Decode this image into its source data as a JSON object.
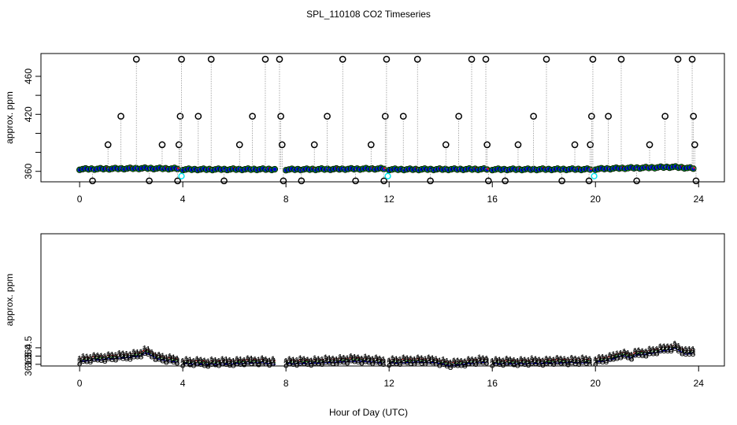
{
  "figure": {
    "title": "SPL_110108  CO2 Timeseries",
    "xlabel": "Hour of Day (UTC)"
  },
  "colors": {
    "raw_points": "#000000",
    "flag_points": "#00e5ee",
    "series_1": "#dd0000",
    "series_2": "#00aa00",
    "series_3": "#0000cc",
    "trend_line": "#888888"
  },
  "chart_data": [
    {
      "type": "scatter",
      "name": "top-panel",
      "ylabel": "approx. ppm",
      "xlim": [
        -1.5,
        25
      ],
      "ylim": [
        349,
        484
      ],
      "xticks": [
        0,
        4,
        8,
        12,
        16,
        20,
        24
      ],
      "yticks": [
        360,
        380,
        400,
        420,
        440,
        460
      ],
      "ytick_labels": [
        "360",
        "",
        "",
        "420",
        "",
        "460"
      ],
      "baseline_segments": [
        {
          "x": [
            0.0,
            2.5,
            3.0,
            3.8
          ],
          "y": [
            362.3,
            363.2,
            363.0,
            362.8
          ]
        },
        {
          "x": [
            4.0,
            7.6
          ],
          "y": [
            362.0,
            362.2
          ]
        },
        {
          "x": [
            8.0,
            11.8
          ],
          "y": [
            361.9,
            362.8
          ]
        },
        {
          "x": [
            12.0,
            15.8
          ],
          "y": [
            362.0,
            362.3
          ]
        },
        {
          "x": [
            16.0,
            19.8
          ],
          "y": [
            362.0,
            362.2
          ]
        },
        {
          "x": [
            20.0,
            21.0,
            22.0,
            23.0,
            23.8
          ],
          "y": [
            362.4,
            363.3,
            363.8,
            364.6,
            363.2
          ]
        }
      ],
      "spikes": [
        {
          "x": 0.5,
          "y": 350
        },
        {
          "x": 1.1,
          "y": 388
        },
        {
          "x": 1.6,
          "y": 418
        },
        {
          "x": 2.2,
          "y": 478
        },
        {
          "x": 2.7,
          "y": 350
        },
        {
          "x": 3.2,
          "y": 388
        },
        {
          "x": 3.8,
          "y": 350
        },
        {
          "x": 3.85,
          "y": 388
        },
        {
          "x": 3.9,
          "y": 418
        },
        {
          "x": 3.95,
          "y": 478
        },
        {
          "x": 4.6,
          "y": 418
        },
        {
          "x": 5.1,
          "y": 478
        },
        {
          "x": 5.6,
          "y": 350
        },
        {
          "x": 6.2,
          "y": 388
        },
        {
          "x": 6.7,
          "y": 418
        },
        {
          "x": 7.2,
          "y": 478
        },
        {
          "x": 7.75,
          "y": 478
        },
        {
          "x": 7.8,
          "y": 418
        },
        {
          "x": 7.85,
          "y": 388
        },
        {
          "x": 7.9,
          "y": 350
        },
        {
          "x": 8.6,
          "y": 350
        },
        {
          "x": 9.1,
          "y": 388
        },
        {
          "x": 9.6,
          "y": 418
        },
        {
          "x": 10.2,
          "y": 478
        },
        {
          "x": 10.7,
          "y": 350
        },
        {
          "x": 11.3,
          "y": 388
        },
        {
          "x": 11.8,
          "y": 350
        },
        {
          "x": 11.85,
          "y": 418
        },
        {
          "x": 11.9,
          "y": 478
        },
        {
          "x": 12.55,
          "y": 418
        },
        {
          "x": 13.1,
          "y": 478
        },
        {
          "x": 13.6,
          "y": 350
        },
        {
          "x": 14.2,
          "y": 388
        },
        {
          "x": 14.7,
          "y": 418
        },
        {
          "x": 15.2,
          "y": 478
        },
        {
          "x": 15.75,
          "y": 478
        },
        {
          "x": 15.8,
          "y": 388
        },
        {
          "x": 15.85,
          "y": 350
        },
        {
          "x": 16.5,
          "y": 350
        },
        {
          "x": 17.0,
          "y": 388
        },
        {
          "x": 17.6,
          "y": 418
        },
        {
          "x": 18.1,
          "y": 478
        },
        {
          "x": 18.7,
          "y": 350
        },
        {
          "x": 19.2,
          "y": 388
        },
        {
          "x": 19.75,
          "y": 350
        },
        {
          "x": 19.8,
          "y": 388
        },
        {
          "x": 19.85,
          "y": 418
        },
        {
          "x": 19.9,
          "y": 478
        },
        {
          "x": 20.5,
          "y": 418
        },
        {
          "x": 21.0,
          "y": 478
        },
        {
          "x": 21.6,
          "y": 350
        },
        {
          "x": 22.1,
          "y": 388
        },
        {
          "x": 22.7,
          "y": 418
        },
        {
          "x": 23.2,
          "y": 478
        },
        {
          "x": 23.75,
          "y": 478
        },
        {
          "x": 23.8,
          "y": 418
        },
        {
          "x": 23.85,
          "y": 388
        },
        {
          "x": 23.9,
          "y": 350
        }
      ],
      "flag_points": [
        {
          "x": 3.95,
          "y": 355
        },
        {
          "x": 11.95,
          "y": 355
        },
        {
          "x": 19.95,
          "y": 355
        }
      ]
    },
    {
      "type": "line",
      "name": "bottom-panel",
      "ylabel": "approx. ppm",
      "xlim": [
        -1.5,
        25
      ],
      "ylim": [
        361.2,
        385.2
      ],
      "xticks": [
        0,
        4,
        8,
        12,
        16,
        20,
        24
      ],
      "yticks": [
        361.5,
        363.0,
        364.5
      ],
      "ytick_labels": [
        "361.5",
        "363.0",
        "364.5"
      ],
      "series": [
        {
          "name": "1",
          "marker": "1",
          "offset": 0.6
        },
        {
          "name": "2",
          "marker": "2",
          "offset": 0.3
        },
        {
          "name": "3",
          "marker": "3",
          "offset": 0.0
        }
      ],
      "segments": [
        {
          "x": [
            0.0,
            0.6,
            1.2,
            1.8,
            2.3,
            2.6,
            3.0,
            3.4,
            3.8
          ],
          "y": [
            362.0,
            362.3,
            362.5,
            362.7,
            363.0,
            363.6,
            362.5,
            362.1,
            361.9
          ]
        },
        {
          "x": [
            4.0,
            5.0,
            6.0,
            7.0,
            7.6
          ],
          "y": [
            361.6,
            361.5,
            361.6,
            361.8,
            361.5
          ]
        },
        {
          "x": [
            8.0,
            9.0,
            10.0,
            10.8,
            11.4,
            11.8
          ],
          "y": [
            361.6,
            361.7,
            361.9,
            362.1,
            361.9,
            361.7
          ]
        },
        {
          "x": [
            12.0,
            13.0,
            13.8,
            14.4,
            15.0,
            15.8
          ],
          "y": [
            361.7,
            361.9,
            361.8,
            361.2,
            361.6,
            361.9
          ]
        },
        {
          "x": [
            16.0,
            17.0,
            18.0,
            19.0,
            19.8
          ],
          "y": [
            361.6,
            361.6,
            361.7,
            361.8,
            361.8
          ]
        },
        {
          "x": [
            20.0,
            20.6,
            21.0,
            21.4,
            21.6,
            21.9,
            22.3,
            22.7,
            23.1,
            23.5,
            23.8
          ],
          "y": [
            361.9,
            362.3,
            363.1,
            362.7,
            363.2,
            363.3,
            363.6,
            364.0,
            364.4,
            363.3,
            363.6
          ]
        }
      ]
    }
  ]
}
